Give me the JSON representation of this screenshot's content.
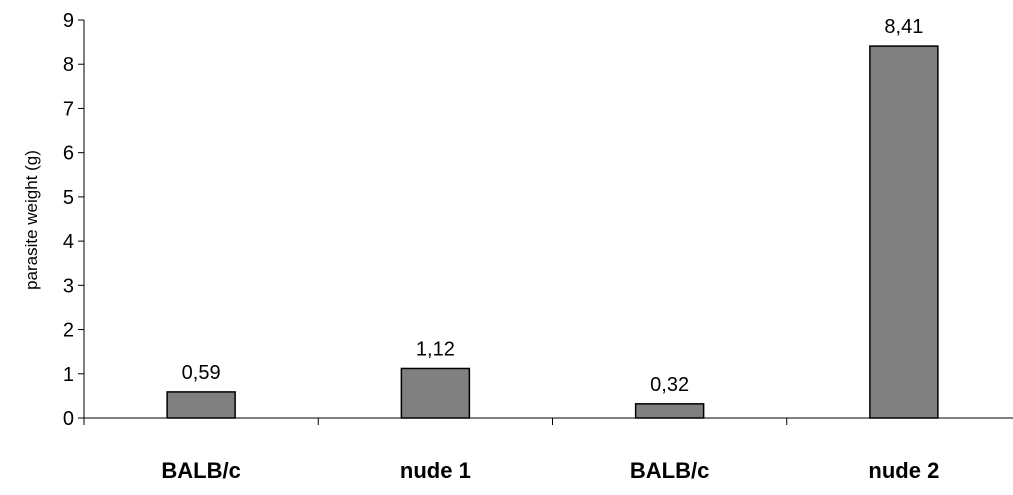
{
  "chart_data": {
    "type": "bar",
    "categories": [
      "BALB/c",
      "nude 1",
      "BALB/c",
      "nude 2"
    ],
    "values": [
      0.59,
      1.12,
      0.32,
      8.41
    ],
    "data_labels": [
      "0,59",
      "1,12",
      "0,32",
      "8,41"
    ],
    "title": "",
    "xlabel": "",
    "ylabel": "parasite weight (g)",
    "ylim": [
      0,
      9
    ],
    "yticks": [
      "0",
      "1",
      "2",
      "3",
      "4",
      "5",
      "6",
      "7",
      "8",
      "9"
    ],
    "grid": false,
    "legend": "none",
    "colors": {
      "bar_fill": "#808080",
      "bar_stroke": "#000000",
      "axis": "#000000"
    }
  }
}
